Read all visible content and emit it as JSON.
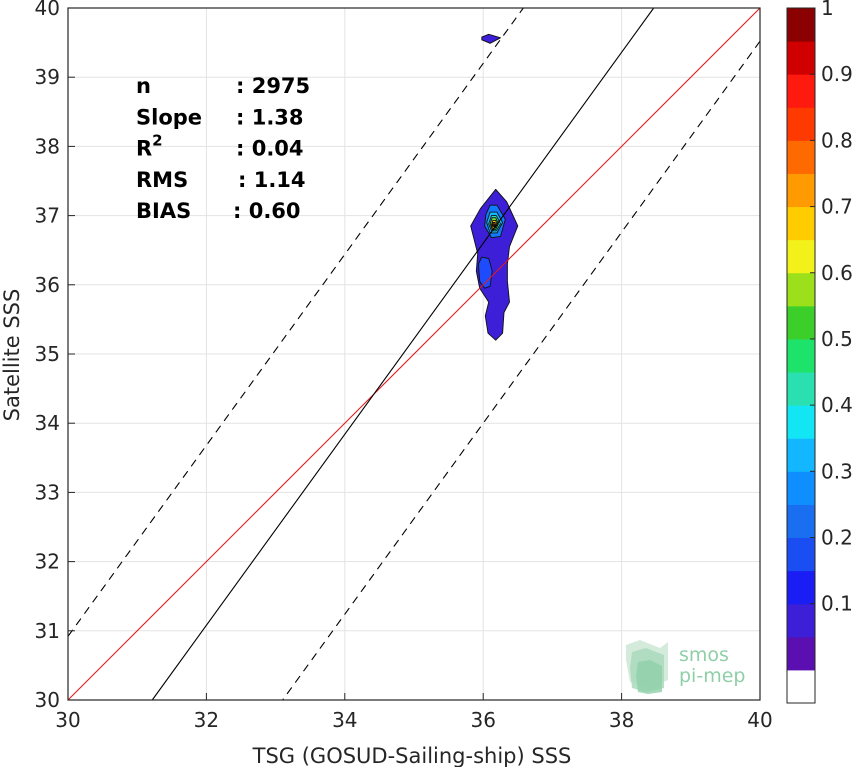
{
  "chart_data": {
    "type": "contour-scatter",
    "xlabel": "TSG (GOSUD-Sailing-ship) SSS",
    "ylabel": "Satellite SSS",
    "xlim": [
      30,
      40
    ],
    "ylim": [
      30,
      40
    ],
    "xticks": [
      30,
      32,
      34,
      36,
      38,
      40
    ],
    "yticks": [
      30,
      31,
      32,
      33,
      34,
      35,
      36,
      37,
      38,
      39,
      40
    ],
    "grid": true,
    "stats": [
      {
        "label": "n",
        "value": ": 2975"
      },
      {
        "label": "Slope",
        "value": ": 1.38"
      },
      {
        "label": "R",
        "sup": "2",
        "value": ": 0.04"
      },
      {
        "label": "RMS",
        "value": ": 1.14"
      },
      {
        "label": "BIAS",
        "value": ": 0.60"
      }
    ],
    "lines": {
      "one_to_one": {
        "slope": 1,
        "intercept": 0,
        "color": "#e41a1c"
      },
      "regression": {
        "slope": 1.38,
        "intercept": -13.08,
        "color": "#000000"
      },
      "rms_band_upper": {
        "slope": 1.38,
        "intercept": -10.48,
        "style": "dashed"
      },
      "rms_band_lower": {
        "slope": 1.38,
        "intercept": -15.68,
        "style": "dashed"
      }
    },
    "density_contours": [
      {
        "level": 0.05,
        "color": "#3c1fd6",
        "points": [
          [
            36.18,
            37.38
          ],
          [
            36.34,
            37.2
          ],
          [
            36.5,
            36.85
          ],
          [
            36.38,
            36.55
          ],
          [
            36.35,
            36.3
          ],
          [
            36.35,
            36.05
          ],
          [
            36.38,
            35.75
          ],
          [
            36.3,
            35.6
          ],
          [
            36.28,
            35.3
          ],
          [
            36.18,
            35.2
          ],
          [
            36.07,
            35.3
          ],
          [
            36.03,
            35.55
          ],
          [
            36.08,
            35.75
          ],
          [
            35.95,
            35.95
          ],
          [
            35.9,
            36.2
          ],
          [
            35.92,
            36.45
          ],
          [
            35.82,
            36.85
          ],
          [
            35.96,
            37.1
          ]
        ]
      },
      {
        "level": 0.05,
        "color": "#3c1fd6",
        "points": [
          [
            35.98,
            39.58
          ],
          [
            36.08,
            39.62
          ],
          [
            36.25,
            39.57
          ],
          [
            36.1,
            39.49
          ],
          [
            35.98,
            39.54
          ]
        ]
      },
      {
        "level": 0.15,
        "color": "#1f4bff",
        "points": [
          [
            35.93,
            36.3
          ],
          [
            35.98,
            36.4
          ],
          [
            36.08,
            36.38
          ],
          [
            36.13,
            36.2
          ],
          [
            36.1,
            35.98
          ],
          [
            36.02,
            35.95
          ],
          [
            35.95,
            36.05
          ]
        ]
      },
      {
        "level": 0.25,
        "color": "#0f7cff",
        "points": [
          [
            36.1,
            37.15
          ],
          [
            36.2,
            37.15
          ],
          [
            36.32,
            36.95
          ],
          [
            36.25,
            36.7
          ],
          [
            36.12,
            36.68
          ],
          [
            36.02,
            36.85
          ],
          [
            36.04,
            37.02
          ]
        ]
      },
      {
        "level": 0.35,
        "color": "#12b7ff",
        "points": [
          [
            36.1,
            37.05
          ],
          [
            36.2,
            37.05
          ],
          [
            36.28,
            36.9
          ],
          [
            36.2,
            36.75
          ],
          [
            36.1,
            36.75
          ],
          [
            36.05,
            36.9
          ]
        ]
      },
      {
        "level": 0.45,
        "color": "#2be0b0",
        "points": [
          [
            36.12,
            37.0
          ],
          [
            36.19,
            37.0
          ],
          [
            36.25,
            36.88
          ],
          [
            36.19,
            36.78
          ],
          [
            36.12,
            36.78
          ],
          [
            36.08,
            36.88
          ]
        ]
      },
      {
        "level": 0.55,
        "color": "#6bd83c",
        "points": [
          [
            36.13,
            36.97
          ],
          [
            36.18,
            36.97
          ],
          [
            36.22,
            36.88
          ],
          [
            36.18,
            36.8
          ],
          [
            36.13,
            36.8
          ],
          [
            36.1,
            36.88
          ]
        ]
      },
      {
        "level": 0.7,
        "color": "#ffcc00",
        "points": [
          [
            36.14,
            36.93
          ],
          [
            36.18,
            36.93
          ],
          [
            36.2,
            36.87
          ],
          [
            36.17,
            36.82
          ],
          [
            36.13,
            36.82
          ],
          [
            36.12,
            36.87
          ]
        ]
      },
      {
        "level": 0.85,
        "color": "#ff5a00",
        "points": [
          [
            36.14,
            36.9
          ],
          [
            36.17,
            36.9
          ],
          [
            36.18,
            36.86
          ],
          [
            36.16,
            36.84
          ],
          [
            36.13,
            36.85
          ]
        ]
      },
      {
        "level": 1.0,
        "color": "#8b0000",
        "points": [
          [
            36.14,
            36.88
          ],
          [
            36.16,
            36.88
          ],
          [
            36.17,
            36.86
          ],
          [
            36.15,
            36.845
          ],
          [
            36.135,
            36.86
          ]
        ]
      }
    ],
    "colorbar": {
      "ticks": [
        0.1,
        0.2,
        0.3,
        0.4,
        0.5,
        0.6,
        0.7,
        0.8,
        0.9,
        1
      ],
      "segments": [
        "#ffffff",
        "#5b0fb0",
        "#3c1fd6",
        "#1a1ef5",
        "#1a4df2",
        "#1a6ef0",
        "#0f8fff",
        "#12b7ff",
        "#12e6f5",
        "#2be0b0",
        "#1ee36b",
        "#3ccf2a",
        "#9be01a",
        "#f2f21a",
        "#ffcc00",
        "#ff9a00",
        "#ff6a00",
        "#ff3a00",
        "#ff1a0f",
        "#d10000",
        "#8b0000"
      ]
    },
    "logo": {
      "line1": "smos",
      "line2": "pi-mep",
      "color": "#8fcfa8"
    }
  }
}
